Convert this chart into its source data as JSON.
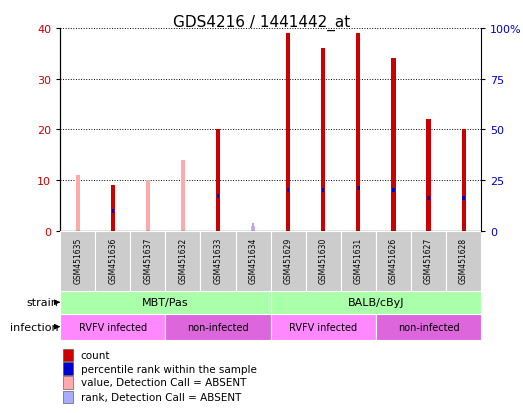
{
  "title": "GDS4216 / 1441442_at",
  "samples": [
    "GSM451635",
    "GSM451636",
    "GSM451637",
    "GSM451632",
    "GSM451633",
    "GSM451634",
    "GSM451629",
    "GSM451630",
    "GSM451631",
    "GSM451626",
    "GSM451627",
    "GSM451628"
  ],
  "count_values": [
    0,
    9,
    0,
    0,
    20,
    0,
    39,
    36,
    39,
    34,
    22,
    20
  ],
  "percentile_values": [
    0,
    10,
    0,
    0,
    17,
    0,
    20,
    20,
    21,
    20,
    16,
    16
  ],
  "absent_value_values": [
    11,
    0,
    10,
    14,
    0,
    1,
    0,
    0,
    0,
    0,
    0,
    0
  ],
  "absent_rank_values": [
    0,
    0,
    0,
    0,
    0,
    4,
    0,
    0,
    0,
    0,
    0,
    0
  ],
  "is_absent": [
    true,
    false,
    true,
    true,
    false,
    true,
    false,
    false,
    false,
    false,
    false,
    false
  ],
  "ylim_left": [
    0,
    40
  ],
  "ylim_right": [
    0,
    100
  ],
  "yticks_left": [
    0,
    10,
    20,
    30,
    40
  ],
  "yticks_right": [
    0,
    25,
    50,
    75,
    100
  ],
  "color_count": "#cc0000",
  "color_percentile": "#0000cc",
  "color_absent_value": "#ffaaaa",
  "color_absent_rank": "#aaaaff",
  "strain_labels": [
    {
      "label": "MBT/Pas",
      "start": 0,
      "end": 6
    },
    {
      "label": "BALB/cByJ",
      "start": 6,
      "end": 12
    }
  ],
  "strain_color": "#aaffaa",
  "infection_groups": [
    {
      "label": "RVFV infected",
      "start": 0,
      "end": 3,
      "color": "#ff88ff"
    },
    {
      "label": "non-infected",
      "start": 3,
      "end": 6,
      "color": "#dd66dd"
    },
    {
      "label": "RVFV infected",
      "start": 6,
      "end": 9,
      "color": "#ff88ff"
    },
    {
      "label": "non-infected",
      "start": 9,
      "end": 12,
      "color": "#dd66dd"
    }
  ],
  "legend_items": [
    {
      "label": "count",
      "color": "#cc0000"
    },
    {
      "label": "percentile rank within the sample",
      "color": "#0000cc"
    },
    {
      "label": "value, Detection Call = ABSENT",
      "color": "#ffaaaa"
    },
    {
      "label": "rank, Detection Call = ABSENT",
      "color": "#aaaaff"
    }
  ],
  "grid_color": "#000000",
  "title_fontsize": 11
}
